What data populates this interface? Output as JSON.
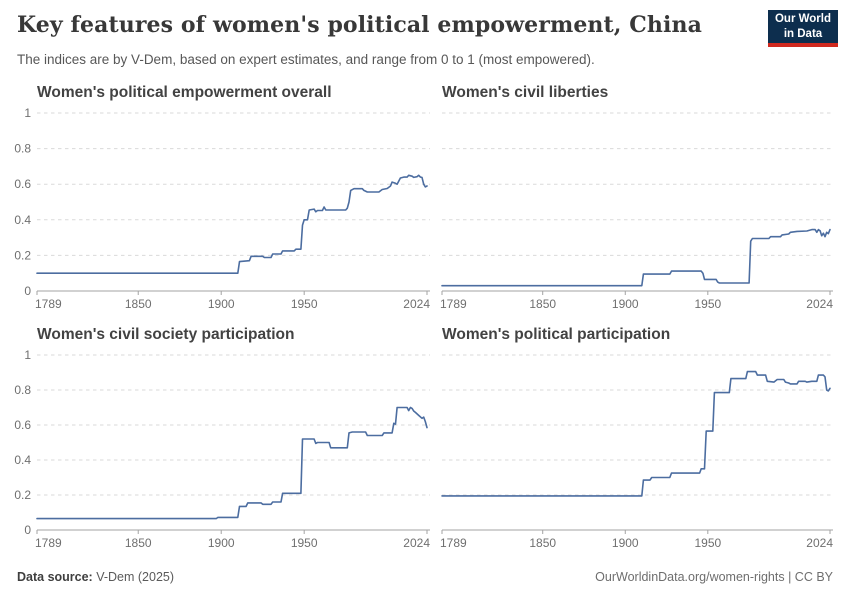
{
  "header": {
    "title": "Key features of women's political empowerment, China",
    "subtitle": "The indices are by V-Dem, based on expert estimates, and range from 0 to 1 (most empowered).",
    "logo": {
      "line1": "Our World",
      "line2": "in Data"
    }
  },
  "footer": {
    "source_label": "Data source:",
    "source_value": " V-Dem (2025)",
    "credit": "OurWorldinData.org/women-rights | CC BY"
  },
  "colors": {
    "line": "#4c6da0",
    "grid": "#dadada",
    "axis": "#a3a3a3",
    "tick_label": "#6f6f6f",
    "logo_bg": "#0d2e4e",
    "logo_red": "#d0291f"
  },
  "chart_data": [
    {
      "type": "line",
      "title": "Women's political empowerment overall",
      "xlabel": "",
      "ylabel": "",
      "xlim": [
        1789,
        2024
      ],
      "ylim": [
        0,
        1
      ],
      "x_ticks": [
        1789,
        1850,
        1900,
        1950,
        2024
      ],
      "y_ticks": [
        0,
        0.2,
        0.4,
        0.6,
        0.8,
        1
      ],
      "y_labels_shown": true,
      "grid": true,
      "points": [
        [
          1789,
          0.1
        ],
        [
          1910,
          0.1
        ],
        [
          1911,
          0.165
        ],
        [
          1917,
          0.17
        ],
        [
          1918,
          0.195
        ],
        [
          1925,
          0.195
        ],
        [
          1926,
          0.188
        ],
        [
          1930,
          0.188
        ],
        [
          1931,
          0.208
        ],
        [
          1936,
          0.208
        ],
        [
          1937,
          0.225
        ],
        [
          1944,
          0.225
        ],
        [
          1945,
          0.235
        ],
        [
          1948,
          0.235
        ],
        [
          1949,
          0.37
        ],
        [
          1950,
          0.4
        ],
        [
          1952,
          0.4
        ],
        [
          1953,
          0.455
        ],
        [
          1956,
          0.46
        ],
        [
          1957,
          0.445
        ],
        [
          1958,
          0.452
        ],
        [
          1961,
          0.452
        ],
        [
          1962,
          0.472
        ],
        [
          1963,
          0.455
        ],
        [
          1975,
          0.455
        ],
        [
          1976,
          0.465
        ],
        [
          1977,
          0.5
        ],
        [
          1978,
          0.565
        ],
        [
          1980,
          0.575
        ],
        [
          1985,
          0.575
        ],
        [
          1986,
          0.565
        ],
        [
          1988,
          0.556
        ],
        [
          1995,
          0.556
        ],
        [
          1997,
          0.57
        ],
        [
          2000,
          0.576
        ],
        [
          2002,
          0.59
        ],
        [
          2003,
          0.612
        ],
        [
          2005,
          0.605
        ],
        [
          2006,
          0.6
        ],
        [
          2008,
          0.635
        ],
        [
          2010,
          0.64
        ],
        [
          2012,
          0.64
        ],
        [
          2013,
          0.65
        ],
        [
          2015,
          0.645
        ],
        [
          2016,
          0.638
        ],
        [
          2018,
          0.642
        ],
        [
          2019,
          0.65
        ],
        [
          2020,
          0.64
        ],
        [
          2021,
          0.638
        ],
        [
          2022,
          0.6
        ],
        [
          2023,
          0.585
        ],
        [
          2024,
          0.59
        ]
      ]
    },
    {
      "type": "line",
      "title": "Women's civil liberties",
      "xlabel": "",
      "ylabel": "",
      "xlim": [
        1789,
        2024
      ],
      "ylim": [
        0,
        1
      ],
      "x_ticks": [
        1789,
        1850,
        1900,
        1950,
        2024
      ],
      "y_ticks": [
        0,
        0.2,
        0.4,
        0.6,
        0.8,
        1
      ],
      "y_labels_shown": false,
      "grid": true,
      "points": [
        [
          1789,
          0.03
        ],
        [
          1910,
          0.03
        ],
        [
          1911,
          0.095
        ],
        [
          1927,
          0.095
        ],
        [
          1928,
          0.112
        ],
        [
          1946,
          0.112
        ],
        [
          1947,
          0.1
        ],
        [
          1948,
          0.065
        ],
        [
          1955,
          0.065
        ],
        [
          1956,
          0.05
        ],
        [
          1957,
          0.045
        ],
        [
          1975,
          0.045
        ],
        [
          1976,
          0.28
        ],
        [
          1977,
          0.295
        ],
        [
          1987,
          0.295
        ],
        [
          1988,
          0.305
        ],
        [
          1994,
          0.305
        ],
        [
          1995,
          0.315
        ],
        [
          1999,
          0.32
        ],
        [
          2000,
          0.33
        ],
        [
          2004,
          0.335
        ],
        [
          2010,
          0.337
        ],
        [
          2013,
          0.345
        ],
        [
          2015,
          0.345
        ],
        [
          2016,
          0.33
        ],
        [
          2017,
          0.345
        ],
        [
          2018,
          0.338
        ],
        [
          2019,
          0.31
        ],
        [
          2020,
          0.325
        ],
        [
          2021,
          0.305
        ],
        [
          2022,
          0.33
        ],
        [
          2023,
          0.322
        ],
        [
          2024,
          0.345
        ]
      ]
    },
    {
      "type": "line",
      "title": "Women's civil society participation",
      "xlabel": "",
      "ylabel": "",
      "xlim": [
        1789,
        2024
      ],
      "ylim": [
        0,
        1
      ],
      "x_ticks": [
        1789,
        1850,
        1900,
        1950,
        2024
      ],
      "y_ticks": [
        0,
        0.2,
        0.4,
        0.6,
        0.8,
        1
      ],
      "y_labels_shown": true,
      "grid": true,
      "points": [
        [
          1789,
          0.065
        ],
        [
          1897,
          0.065
        ],
        [
          1898,
          0.072
        ],
        [
          1910,
          0.072
        ],
        [
          1911,
          0.135
        ],
        [
          1915,
          0.135
        ],
        [
          1916,
          0.155
        ],
        [
          1924,
          0.155
        ],
        [
          1925,
          0.147
        ],
        [
          1930,
          0.147
        ],
        [
          1931,
          0.16
        ],
        [
          1936,
          0.16
        ],
        [
          1937,
          0.21
        ],
        [
          1948,
          0.21
        ],
        [
          1949,
          0.52
        ],
        [
          1956,
          0.52
        ],
        [
          1957,
          0.495
        ],
        [
          1958,
          0.5
        ],
        [
          1965,
          0.5
        ],
        [
          1966,
          0.47
        ],
        [
          1976,
          0.47
        ],
        [
          1977,
          0.555
        ],
        [
          1979,
          0.56
        ],
        [
          1987,
          0.56
        ],
        [
          1988,
          0.54
        ],
        [
          1997,
          0.54
        ],
        [
          1998,
          0.555
        ],
        [
          2003,
          0.555
        ],
        [
          2004,
          0.61
        ],
        [
          2005,
          0.605
        ],
        [
          2006,
          0.7
        ],
        [
          2012,
          0.7
        ],
        [
          2013,
          0.682
        ],
        [
          2014,
          0.7
        ],
        [
          2015,
          0.695
        ],
        [
          2016,
          0.68
        ],
        [
          2017,
          0.672
        ],
        [
          2019,
          0.655
        ],
        [
          2021,
          0.638
        ],
        [
          2022,
          0.645
        ],
        [
          2023,
          0.62
        ],
        [
          2024,
          0.585
        ]
      ]
    },
    {
      "type": "line",
      "title": "Women's political participation",
      "xlabel": "",
      "ylabel": "",
      "xlim": [
        1789,
        2024
      ],
      "ylim": [
        0,
        1
      ],
      "x_ticks": [
        1789,
        1850,
        1900,
        1950,
        2024
      ],
      "y_ticks": [
        0,
        0.2,
        0.4,
        0.6,
        0.8,
        1
      ],
      "y_labels_shown": false,
      "grid": true,
      "points": [
        [
          1789,
          0.195
        ],
        [
          1910,
          0.195
        ],
        [
          1911,
          0.285
        ],
        [
          1915,
          0.285
        ],
        [
          1916,
          0.3
        ],
        [
          1927,
          0.3
        ],
        [
          1928,
          0.325
        ],
        [
          1945,
          0.325
        ],
        [
          1946,
          0.35
        ],
        [
          1948,
          0.35
        ],
        [
          1949,
          0.565
        ],
        [
          1953,
          0.565
        ],
        [
          1954,
          0.785
        ],
        [
          1963,
          0.785
        ],
        [
          1964,
          0.865
        ],
        [
          1973,
          0.865
        ],
        [
          1974,
          0.905
        ],
        [
          1979,
          0.905
        ],
        [
          1980,
          0.885
        ],
        [
          1985,
          0.885
        ],
        [
          1986,
          0.85
        ],
        [
          1990,
          0.845
        ],
        [
          1992,
          0.86
        ],
        [
          1996,
          0.86
        ],
        [
          1997,
          0.845
        ],
        [
          1999,
          0.84
        ],
        [
          2000,
          0.835
        ],
        [
          2004,
          0.835
        ],
        [
          2005,
          0.85
        ],
        [
          2009,
          0.85
        ],
        [
          2010,
          0.845
        ],
        [
          2013,
          0.85
        ],
        [
          2016,
          0.85
        ],
        [
          2017,
          0.885
        ],
        [
          2020,
          0.885
        ],
        [
          2021,
          0.875
        ],
        [
          2022,
          0.8
        ],
        [
          2023,
          0.795
        ],
        [
          2024,
          0.81
        ]
      ]
    }
  ]
}
